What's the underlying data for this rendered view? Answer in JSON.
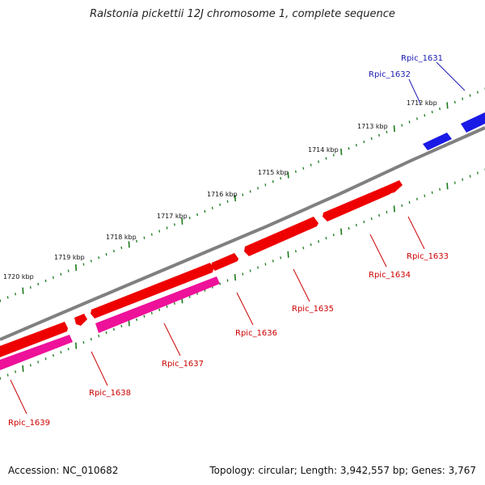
{
  "title": "Ralstonia pickettii 12J chromosome 1, complete sequence",
  "accession": "Accession: NC_010682",
  "summary": "Topology: circular; Length: 3,942,557 bp; Genes: 3,767",
  "colors": {
    "backbone": "#808080",
    "tick": "#1a7a1a",
    "forward_gene": "#ee0000",
    "forward_gene_highlight": "#ff5555",
    "reverse_gene": "#1a1ae6",
    "rna_gene": "#ee1199",
    "forward_label": "#cc0000",
    "reverse_label": "#1a1ab0"
  },
  "scale": {
    "labels": [
      "1712 kbp",
      "1713 kbp",
      "1714 kbp",
      "1715 kbp",
      "1716 kbp",
      "1717 kbp",
      "1718 kbp",
      "1719 kbp",
      "1720 kbp"
    ]
  },
  "genes": [
    {
      "name": "Rpic_1631",
      "strand": "reverse"
    },
    {
      "name": "Rpic_1632",
      "strand": "reverse"
    },
    {
      "name": "Rpic_1633",
      "strand": "forward"
    },
    {
      "name": "Rpic_1634",
      "strand": "forward"
    },
    {
      "name": "Rpic_1635",
      "strand": "forward"
    },
    {
      "name": "Rpic_1636",
      "strand": "forward"
    },
    {
      "name": "Rpic_1637",
      "strand": "forward"
    },
    {
      "name": "Rpic_1638",
      "strand": "forward"
    },
    {
      "name": "Rpic_1639",
      "strand": "forward"
    }
  ]
}
